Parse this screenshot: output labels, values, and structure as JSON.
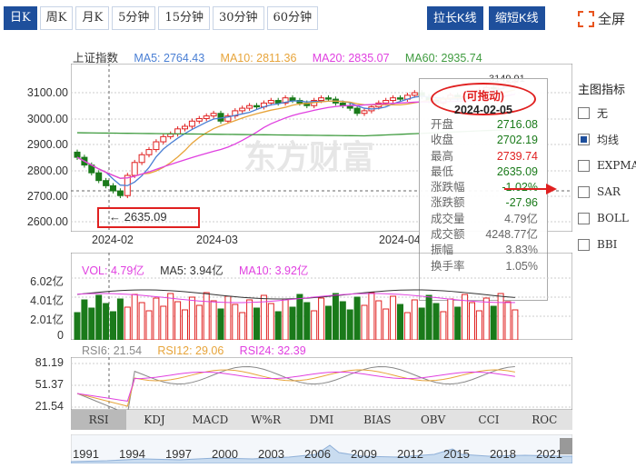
{
  "tabs": [
    "日K",
    "周K",
    "月K",
    "5分钟",
    "15分钟",
    "30分钟",
    "60分钟"
  ],
  "buttons": {
    "stretch": "拉长K线",
    "shrink": "缩短K线",
    "fullscreen": "全屏"
  },
  "legend": {
    "name": "上证指数",
    "ma5": "MA5: 2764.43",
    "ma10": "MA10: 2811.36",
    "ma20": "MA20: 2835.07",
    "ma60": "MA60: 2935.74"
  },
  "colors": {
    "ma5": "#4a7fd4",
    "ma10": "#e7a43a",
    "ma20": "#e040e0",
    "ma60": "#3f9b3f",
    "up": "#e02020",
    "down": "#1a7a1a",
    "accent": "#1e4f9c"
  },
  "y_axis": [
    "3100.00",
    "3000.00",
    "2900.00",
    "2800.00",
    "2700.00",
    "2600.00"
  ],
  "x_axis": [
    "2024-02",
    "2024-03",
    "2024-04"
  ],
  "low_marker": "2635.09",
  "high_marker": "3149.91",
  "side_panel": {
    "title": "主图指标",
    "items": [
      {
        "label": "无",
        "checked": false
      },
      {
        "label": "均线",
        "checked": true
      },
      {
        "label": "EXPMA",
        "checked": false
      },
      {
        "label": "SAR",
        "checked": false
      },
      {
        "label": "BOLL",
        "checked": false
      },
      {
        "label": "BBI",
        "checked": false
      }
    ]
  },
  "tooltip": {
    "drag_label": "(可拖动)",
    "date": "2024-02-05",
    "rows": [
      {
        "k": "开盘",
        "v": "2716.08",
        "c": "#1a7a1a"
      },
      {
        "k": "收盘",
        "v": "2702.19",
        "c": "#1a7a1a"
      },
      {
        "k": "最高",
        "v": "2739.74",
        "c": "#e02020"
      },
      {
        "k": "最低",
        "v": "2635.09",
        "c": "#1a7a1a"
      },
      {
        "k": "涨跌幅",
        "v": "-1.02%",
        "c": "#1a7a1a"
      },
      {
        "k": "涨跌额",
        "v": "-27.96",
        "c": "#1a7a1a"
      },
      {
        "k": "成交量",
        "v": "4.79亿",
        "c": "#666"
      },
      {
        "k": "成交额",
        "v": "4248.77亿",
        "c": "#666"
      },
      {
        "k": "振幅",
        "v": "3.83%",
        "c": "#666"
      },
      {
        "k": "换手率",
        "v": "1.05%",
        "c": "#666"
      }
    ]
  },
  "vol_legend": {
    "vol": "VOL: 4.79亿",
    "ma5": "MA5: 3.94亿",
    "ma10": "MA10: 3.92亿"
  },
  "vol_axis": [
    "6.02亿",
    "4.01亿",
    "2.01亿",
    "0"
  ],
  "rsi_legend": {
    "rsi6": "RSI6: 21.54",
    "rsi12": "RSI12: 29.06",
    "rsi24": "RSI24: 32.39"
  },
  "rsi_axis": [
    "81.19",
    "51.37",
    "21.54"
  ],
  "indicator_tabs": [
    "RSI",
    "KDJ",
    "MACD",
    "W%R",
    "DMI",
    "BIAS",
    "OBV",
    "CCI",
    "ROC"
  ],
  "years": [
    "1991",
    "1994",
    "1997",
    "2000",
    "2003",
    "2006",
    "2009",
    "2012",
    "2015",
    "2018",
    "2021"
  ],
  "watermark": "东方财富"
}
